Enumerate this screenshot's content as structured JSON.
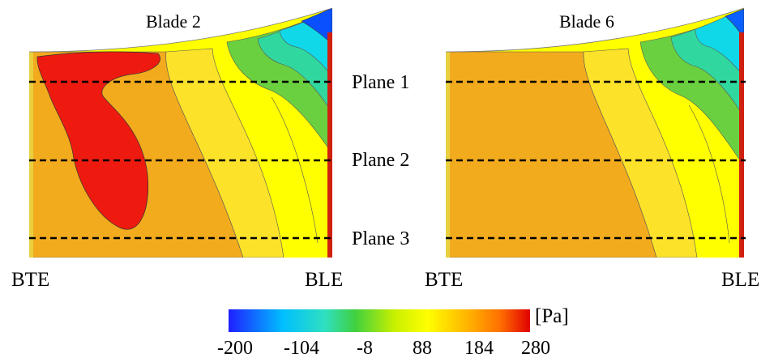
{
  "panels": [
    {
      "title": "Blade 2",
      "left_edge_label": "BTE",
      "right_edge_label": "BLE"
    },
    {
      "title": "Blade 6",
      "left_edge_label": "BTE",
      "right_edge_label": "BLE"
    }
  ],
  "planes": [
    "Plane 1",
    "Plane 2",
    "Plane 3"
  ],
  "colorbar": {
    "unit": "[Pa]",
    "ticks": [
      "-200",
      "-104",
      "-8",
      "88",
      "184",
      "280"
    ],
    "colors": [
      "#1f1fff",
      "#00bfff",
      "#2fe0c0",
      "#40d040",
      "#c8f000",
      "#ffff00",
      "#ffb000",
      "#ff7000",
      "#e00000"
    ]
  },
  "colors": {
    "high": "#f0a020",
    "peak": "#ee1010",
    "upper": "#f7d020",
    "mid": "#ffff00",
    "green": "#70d040",
    "cyan": "#10e0e0",
    "low": "#0020ff"
  }
}
